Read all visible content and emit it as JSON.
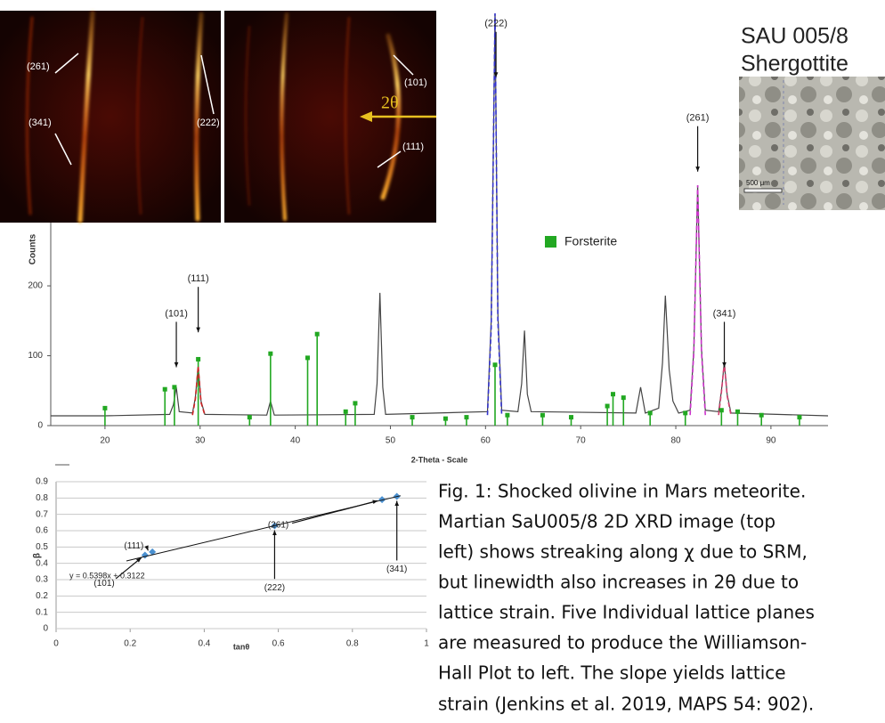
{
  "xrd_image": {
    "labels": [
      "(261)",
      "(341)",
      "(222)",
      "(101)",
      "(111)"
    ],
    "two_theta": "2θ"
  },
  "sample": {
    "name": "SAU 005/8",
    "type": "Shergottite",
    "scale_bar": "500 μm"
  },
  "chart_data": [
    {
      "type": "line",
      "ylabel": "Counts",
      "xlabel": "2-Theta - Scale",
      "xlim": [
        14.3,
        96
      ],
      "ylim": [
        0,
        590
      ],
      "xticks": [
        20,
        30,
        40,
        50,
        60,
        70,
        80,
        90
      ],
      "yticks": [
        0,
        100,
        200
      ],
      "legend": "center",
      "series": [
        {
          "color": "#444444",
          "x": [
            14.3,
            20,
            26.8,
            27.2,
            27.5,
            27.8,
            29.2,
            29.5,
            29.8,
            30.1,
            30.5,
            37.0,
            37.4,
            37.8,
            48.3,
            48.6,
            48.9,
            49.2,
            49.5,
            60.2,
            60.6,
            61.0,
            61.3,
            61.7,
            63.4,
            63.8,
            64.1,
            64.4,
            64.8,
            75.8,
            76.3,
            76.8,
            78.2,
            78.6,
            78.9,
            79.3,
            79.7,
            80.3,
            81.5,
            81.9,
            82.3,
            82.7,
            83.1,
            84.5,
            84.8,
            85.1,
            85.4,
            85.8,
            96
          ],
          "values": [
            14,
            14,
            16,
            30,
            55,
            20,
            18,
            40,
            85,
            35,
            16,
            15,
            35,
            15,
            16,
            60,
            190,
            55,
            16,
            20,
            150,
            590,
            160,
            22,
            20,
            60,
            136,
            45,
            20,
            18,
            55,
            18,
            25,
            90,
            186,
            80,
            35,
            18,
            22,
            110,
            344,
            110,
            22,
            20,
            50,
            90,
            45,
            18,
            14
          ]
        },
        {
          "name": "Forsterite",
          "color": "#22a822",
          "style": "sticks",
          "x": [
            20,
            26.3,
            27.3,
            29.8,
            35.2,
            37.4,
            41.3,
            42.3,
            45.3,
            46.3,
            52.3,
            55.8,
            58,
            61,
            62.3,
            66,
            69,
            72.8,
            73.4,
            74.5,
            77.3,
            81,
            84.8,
            86.5,
            89,
            93
          ],
          "values": [
            25,
            52,
            55,
            95,
            12,
            103,
            97,
            131,
            20,
            32,
            12,
            10,
            12,
            87,
            15,
            15,
            12,
            28,
            45,
            40,
            18,
            18,
            22,
            20,
            15,
            12
          ]
        },
        {
          "color": "#3333cc",
          "style": "fit",
          "x": [
            60.2,
            60.6,
            61.0,
            61.3,
            61.7
          ],
          "values": [
            15,
            140,
            590,
            150,
            15
          ]
        },
        {
          "color": "#cc33cc",
          "style": "fit",
          "x": [
            81.5,
            81.9,
            82.3,
            82.7,
            83.1
          ],
          "values": [
            15,
            105,
            344,
            105,
            15
          ]
        },
        {
          "color": "#cc2222",
          "style": "fit",
          "x": [
            29.2,
            29.5,
            29.8,
            30.1,
            30.5
          ],
          "values": [
            15,
            38,
            85,
            33,
            15
          ]
        },
        {
          "color": "#d04070",
          "style": "fit",
          "x": [
            84.5,
            84.8,
            85.1,
            85.4,
            85.8
          ],
          "values": [
            15,
            48,
            90,
            43,
            15
          ]
        }
      ],
      "annotations": [
        {
          "text": "(222)",
          "x": 61.1,
          "y": 575
        },
        {
          "text": "(261)",
          "x": 82.3,
          "y": 440
        },
        {
          "text": "(341)",
          "x": 85.1,
          "y": 160
        },
        {
          "text": "(111)",
          "x": 29.8,
          "y": 210
        },
        {
          "text": "(101)",
          "x": 27.5,
          "y": 160
        }
      ]
    },
    {
      "type": "scatter",
      "ylabel": "β",
      "xlabel": "tanθ",
      "equation": "y = 0.5398x + 0.3122",
      "xlim": [
        0,
        1
      ],
      "ylim": [
        0,
        0.9
      ],
      "xticks": [
        0,
        0.2,
        0.4,
        0.6,
        0.8,
        1
      ],
      "yticks": [
        0,
        0.1,
        0.2,
        0.3,
        0.4,
        0.5,
        0.6,
        0.7,
        0.8,
        0.9
      ],
      "grid": true,
      "series": [
        {
          "color": "#4a90d0",
          "x": [
            0.24,
            0.26,
            0.59,
            0.88,
            0.92
          ],
          "values": [
            0.45,
            0.47,
            0.63,
            0.79,
            0.81
          ]
        },
        {
          "color": "#111111",
          "style": "line",
          "x": [
            0.19,
            0.93
          ],
          "values": [
            0.4148,
            0.8142
          ]
        }
      ],
      "annotations": [
        {
          "text": "(101)",
          "x": 0.13,
          "y": 0.275
        },
        {
          "text": "(111)",
          "x": 0.21,
          "y": 0.506
        },
        {
          "text": "(222)",
          "x": 0.59,
          "y": 0.25
        },
        {
          "text": "(261)",
          "x": 0.6,
          "y": 0.633
        },
        {
          "text": "(341)",
          "x": 0.92,
          "y": 0.363
        }
      ]
    }
  ],
  "caption": [
    "Fig. 1: Shocked olivine in Mars meteorite.",
    "Martian SaU005/8 2D XRD image (top",
    "left) shows streaking along χ due to SRM,",
    "but linewidth also increases in 2θ due to",
    "lattice strain. Five Individual lattice planes",
    "are measured to produce the Williamson-",
    "Hall Plot to left. The slope yields lattice",
    "strain (Jenkins et al. 2019, MAPS 54: 902)."
  ]
}
